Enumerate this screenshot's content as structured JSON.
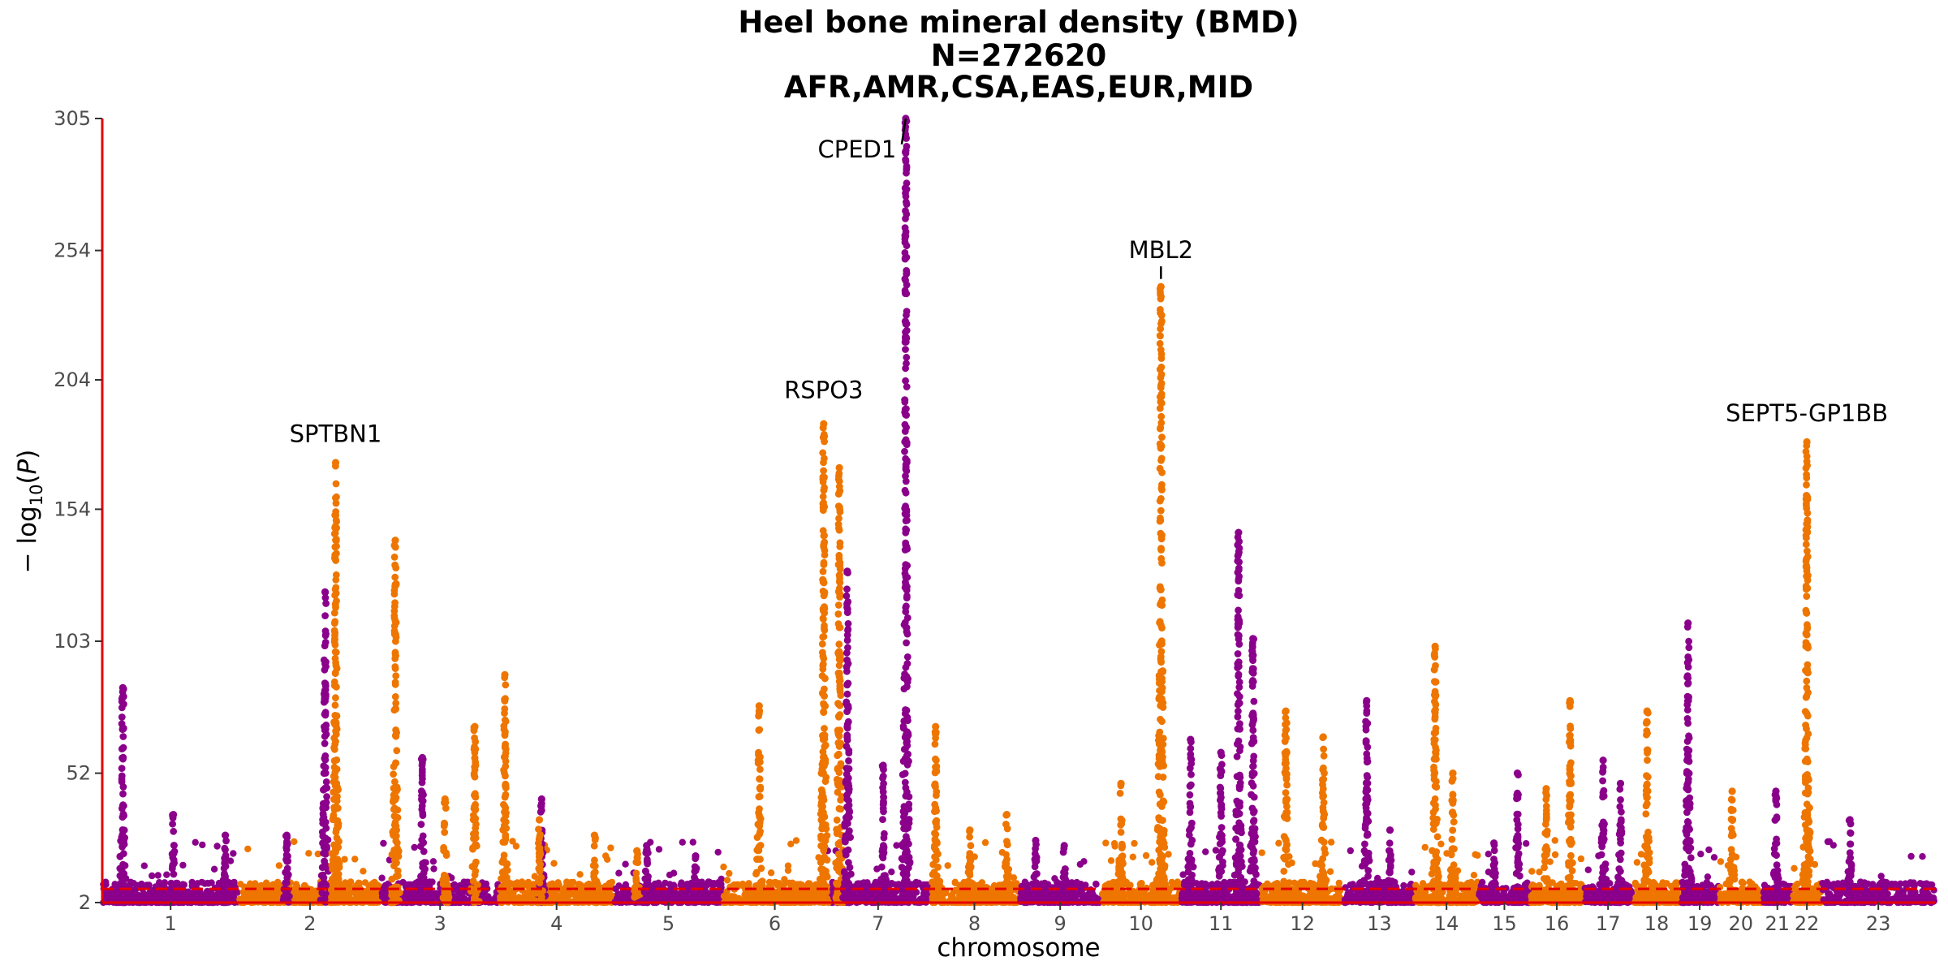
{
  "chart_data": {
    "type": "scatter",
    "subtype": "manhattan",
    "title_lines": [
      "Heel bone mineral density (BMD)",
      "N=272620",
      "AFR,AMR,CSA,EAS,EUR,MID"
    ],
    "xlabel": "chromosome",
    "ylabel_parts": [
      "− log",
      "10",
      "(",
      "P",
      ")"
    ],
    "ylim": [
      2,
      305
    ],
    "yticks": [
      2,
      52,
      103,
      154,
      204,
      254,
      305
    ],
    "significance_line": 7.3,
    "colors": {
      "odd": "#8b008b",
      "even": "#ee7600",
      "axis": "#e60000",
      "threshold": "#e60000"
    },
    "chromosomes": [
      {
        "label": "1",
        "x_start": 0,
        "x_end": 1.76
      },
      {
        "label": "2",
        "x_start": 1.76,
        "x_end": 3.59
      },
      {
        "label": "3",
        "x_start": 3.59,
        "x_end": 5.11
      },
      {
        "label": "4",
        "x_start": 5.11,
        "x_end": 6.59
      },
      {
        "label": "5",
        "x_start": 6.59,
        "x_end": 7.99
      },
      {
        "label": "6",
        "x_start": 7.99,
        "x_end": 9.33
      },
      {
        "label": "7",
        "x_start": 9.33,
        "x_end": 10.65
      },
      {
        "label": "8",
        "x_start": 10.65,
        "x_end": 11.81
      },
      {
        "label": "9",
        "x_start": 11.81,
        "x_end": 12.86
      },
      {
        "label": "10",
        "x_start": 12.86,
        "x_end": 13.89
      },
      {
        "label": "11",
        "x_start": 13.89,
        "x_end": 14.92
      },
      {
        "label": "12",
        "x_start": 14.92,
        "x_end": 15.99
      },
      {
        "label": "13",
        "x_start": 15.99,
        "x_end": 16.9
      },
      {
        "label": "14",
        "x_start": 16.9,
        "x_end": 17.72
      },
      {
        "label": "15",
        "x_start": 17.72,
        "x_end": 18.39
      },
      {
        "label": "16",
        "x_start": 18.39,
        "x_end": 19.07
      },
      {
        "label": "17",
        "x_start": 19.07,
        "x_end": 19.71
      },
      {
        "label": "18",
        "x_start": 19.71,
        "x_end": 20.32
      },
      {
        "label": "19",
        "x_start": 20.32,
        "x_end": 20.82
      },
      {
        "label": "20",
        "x_start": 20.82,
        "x_end": 21.38
      },
      {
        "label": "21",
        "x_start": 21.38,
        "x_end": 21.76
      },
      {
        "label": "22",
        "x_start": 21.76,
        "x_end": 22.14
      },
      {
        "label": "23",
        "x_start": 22.14,
        "x_end": 23.6
      }
    ],
    "peaks": [
      {
        "chr": "1",
        "pos": 0.15,
        "height": 85
      },
      {
        "chr": "1",
        "pos": 0.52,
        "height": 36
      },
      {
        "chr": "1",
        "pos": 0.9,
        "height": 28
      },
      {
        "chr": "1",
        "pos": 1.35,
        "height": 28
      },
      {
        "chr": "1",
        "pos": 1.63,
        "height": 122
      },
      {
        "chr": "2",
        "pos": 0.68,
        "height": 172
      },
      {
        "chr": "2",
        "pos": 1.1,
        "height": 142
      },
      {
        "chr": "2",
        "pos": 1.45,
        "height": 42
      },
      {
        "chr": "2",
        "pos": 1.66,
        "height": 70
      },
      {
        "chr": "3",
        "pos": 0.35,
        "height": 58
      },
      {
        "chr": "3",
        "pos": 1.36,
        "height": 42
      },
      {
        "chr": "4",
        "pos": 0.05,
        "height": 90
      },
      {
        "chr": "4",
        "pos": 0.35,
        "height": 34
      },
      {
        "chr": "4",
        "pos": 0.83,
        "height": 28
      },
      {
        "chr": "4",
        "pos": 1.2,
        "height": 22
      },
      {
        "chr": "5",
        "pos": 0.3,
        "height": 24
      },
      {
        "chr": "5",
        "pos": 0.75,
        "height": 20
      },
      {
        "chr": "6",
        "pos": 0.35,
        "height": 78
      },
      {
        "chr": "6",
        "pos": 0.97,
        "height": 187
      },
      {
        "chr": "6",
        "pos": 1.12,
        "height": 170
      },
      {
        "chr": "7",
        "pos": 0.2,
        "height": 130
      },
      {
        "chr": "7",
        "pos": 0.55,
        "height": 55
      },
      {
        "chr": "7",
        "pos": 0.77,
        "height": 305
      },
      {
        "chr": "8",
        "pos": 0.07,
        "height": 70
      },
      {
        "chr": "8",
        "pos": 0.45,
        "height": 30
      },
      {
        "chr": "8",
        "pos": 0.86,
        "height": 36
      },
      {
        "chr": "9",
        "pos": 0.2,
        "height": 26
      },
      {
        "chr": "9",
        "pos": 0.55,
        "height": 24
      },
      {
        "chr": "10",
        "pos": 0.25,
        "height": 48
      },
      {
        "chr": "10",
        "pos": 0.75,
        "height": 240
      },
      {
        "chr": "11",
        "pos": 0.12,
        "height": 65
      },
      {
        "chr": "11",
        "pos": 0.5,
        "height": 60
      },
      {
        "chr": "11",
        "pos": 0.72,
        "height": 145
      },
      {
        "chr": "11",
        "pos": 0.9,
        "height": 104
      },
      {
        "chr": "12",
        "pos": 0.3,
        "height": 76
      },
      {
        "chr": "12",
        "pos": 0.75,
        "height": 66
      },
      {
        "chr": "13",
        "pos": 0.32,
        "height": 80
      },
      {
        "chr": "13",
        "pos": 0.65,
        "height": 30
      },
      {
        "chr": "14",
        "pos": 0.32,
        "height": 101
      },
      {
        "chr": "14",
        "pos": 0.6,
        "height": 52
      },
      {
        "chr": "15",
        "pos": 0.3,
        "height": 25
      },
      {
        "chr": "15",
        "pos": 0.75,
        "height": 52
      },
      {
        "chr": "16",
        "pos": 0.3,
        "height": 46
      },
      {
        "chr": "16",
        "pos": 0.75,
        "height": 80
      },
      {
        "chr": "17",
        "pos": 0.4,
        "height": 57
      },
      {
        "chr": "17",
        "pos": 0.75,
        "height": 48
      },
      {
        "chr": "18",
        "pos": 0.3,
        "height": 76
      },
      {
        "chr": "19",
        "pos": 0.2,
        "height": 110
      },
      {
        "chr": "20",
        "pos": 0.3,
        "height": 45
      },
      {
        "chr": "21",
        "pos": 0.45,
        "height": 45
      },
      {
        "chr": "22",
        "pos": 0.5,
        "height": 180
      },
      {
        "chr": "23",
        "pos": 0.25,
        "height": 34
      }
    ],
    "annotations": [
      {
        "label": "SPTBN1",
        "chr": "2",
        "pos": 0.68,
        "y": 180
      },
      {
        "label": "RSPO3",
        "chr": "6",
        "pos": 0.97,
        "y": 197
      },
      {
        "label": "CPED1",
        "chr": "7",
        "pos": 0.77,
        "y": 290,
        "arrow_to": 305,
        "label_offset": -60
      },
      {
        "label": "MBL2",
        "chr": "10",
        "pos": 0.75,
        "y": 251,
        "arrow_to": 243
      },
      {
        "label": "SEPT5-GP1BB",
        "chr": "22",
        "pos": 0.5,
        "y": 188
      }
    ]
  }
}
